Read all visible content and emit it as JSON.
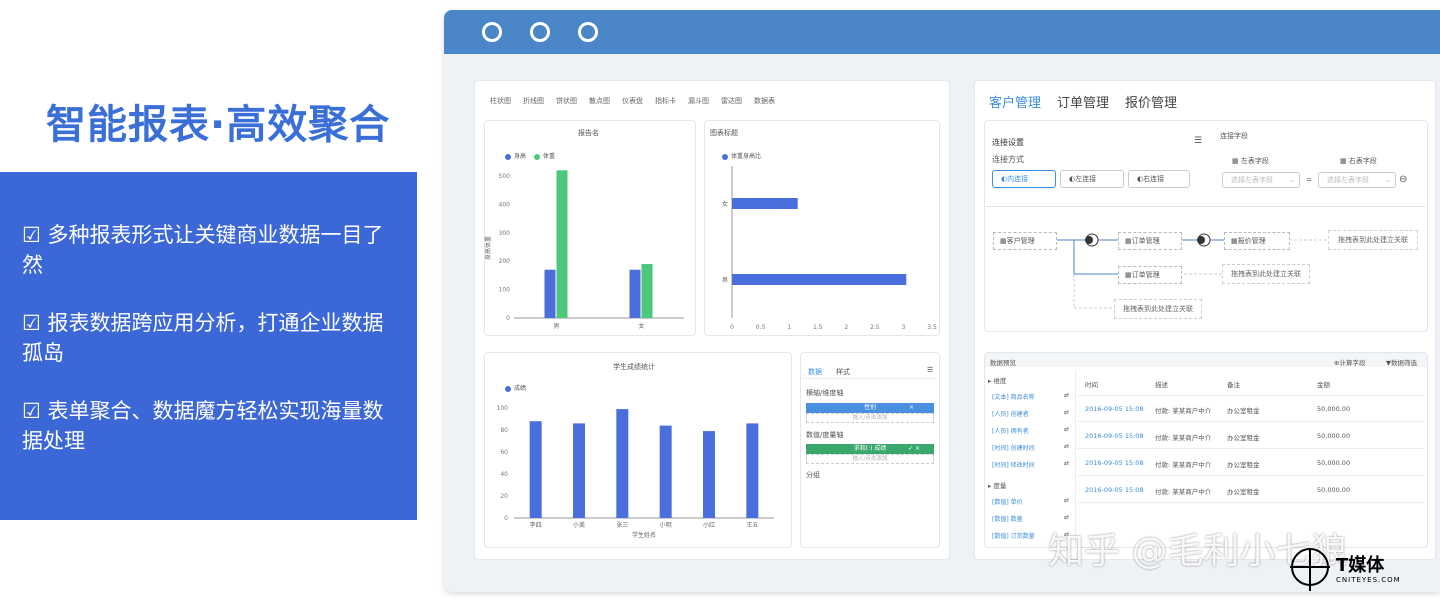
{
  "headline": "智能报表·高效聚合",
  "bullets": [
    "☑ 多种报表形式让关键商业数据一目了然",
    "☑ 报表数据跨应用分析，打通企业数据孤岛",
    "☑ 表单聚合、数据魔方轻松实现海量数据处理"
  ],
  "toolbar": [
    "柱状图",
    "折线图",
    "饼状图",
    "散点图",
    "仪表盘",
    "指标卡",
    "漏斗图",
    "雷达图",
    "数据表"
  ],
  "chart1": {
    "title": "报告名",
    "legend": [
      "身高",
      "体重"
    ],
    "colors": [
      "#4a6fdc",
      "#4cc77b"
    ],
    "ylabel": "身高体重",
    "yticks": [
      "0",
      "100",
      "200",
      "300",
      "400",
      "500"
    ],
    "chart_data": {
      "type": "bar",
      "categories": [
        "男",
        "女"
      ],
      "series": [
        {
          "name": "身高",
          "values": [
            170,
            170
          ]
        },
        {
          "name": "体重",
          "values": [
            520,
            190
          ]
        }
      ],
      "ylim": [
        0,
        500
      ]
    }
  },
  "chart2": {
    "title": "图表标题",
    "legend": [
      "体重身高比"
    ],
    "xticks": [
      "0",
      "0.5",
      "1",
      "1.5",
      "2",
      "2.5",
      "3",
      "3.5"
    ],
    "chart_data": {
      "type": "bar",
      "orientation": "horizontal",
      "categories": [
        "女",
        "男"
      ],
      "series": [
        {
          "name": "体重身高比",
          "values": [
            1.15,
            3.05
          ]
        }
      ],
      "xlim": [
        0,
        3.5
      ]
    }
  },
  "chart3": {
    "title": "学生成绩统计",
    "legend": [
      "成绩"
    ],
    "yticks": [
      "0",
      "20",
      "40",
      "60",
      "80",
      "100"
    ],
    "xlabel": "学生姓名",
    "chart_data": {
      "type": "bar",
      "categories": [
        "李四",
        "小美",
        "张三",
        "小明",
        "小红",
        "王五"
      ],
      "series": [
        {
          "name": "成绩",
          "values": [
            88,
            86,
            99,
            84,
            79,
            86
          ]
        }
      ],
      "ylim": [
        0,
        100
      ]
    }
  },
  "config": {
    "tabs": [
      "数据",
      "样式"
    ],
    "dim_label": "横轴/维度轴",
    "dim_value": "性别",
    "dim_placeholder": "拖入/点击添加",
    "val_label": "数值/度量轴",
    "val_value": "求和(·) 成绩",
    "val_placeholder": "拖入/点击添加",
    "group_label": "分组"
  },
  "right_tabs": [
    "客户管理",
    "订单管理",
    "报价管理"
  ],
  "join": {
    "title": "连接设置",
    "method_label": "连接方式",
    "methods": [
      "内连接",
      "左连接",
      "右连接"
    ],
    "field_label": "连接字段",
    "left_field": "左表字段",
    "right_field": "右表字段",
    "left_placeholder": "选择左表字段",
    "right_placeholder": "选择左表字段",
    "nodes": [
      "客户管理",
      "订单管理",
      "报价管理",
      "订单管理"
    ],
    "drop_texts": [
      "拖拽表到此处建立关联",
      "拖拽表到此处建立关联",
      "拖拽表到此处建立关联"
    ]
  },
  "preview": {
    "title": "数据预览",
    "calc_button": "计算字段",
    "filter_button": "数据筛选",
    "group_dim": "维度",
    "dim_fields": [
      "[文本] 商品名称",
      "[人员] 创建者",
      "[人员] 拥有者",
      "[时间] 创建时间",
      "[时间] 修改时间"
    ],
    "group_measure": "度量",
    "measure_fields": [
      "[数值] 单价",
      "[数值] 数量",
      "[数值] 订货数量"
    ],
    "headers": [
      "时间",
      "描述",
      "备注",
      "金额"
    ],
    "rows": [
      [
        "2016-09-05 15:08",
        "付款: 某某商户中介",
        "办公室租金",
        "50,000.00"
      ],
      [
        "2016-09-05 15:08",
        "付款: 某某商户中介",
        "办公室租金",
        "50,000.00"
      ],
      [
        "2016-09-05 15:08",
        "付款: 某某商户中介",
        "办公室租金",
        "50,000.00"
      ],
      [
        "2016-09-05 15:08",
        "付款: 某某商户中介",
        "办公室租金",
        "50,000.00"
      ]
    ]
  },
  "watermark": "知乎 @毛利小七狼",
  "logo_text": "T媒体",
  "logo_sub": "CNITEYES.COM"
}
